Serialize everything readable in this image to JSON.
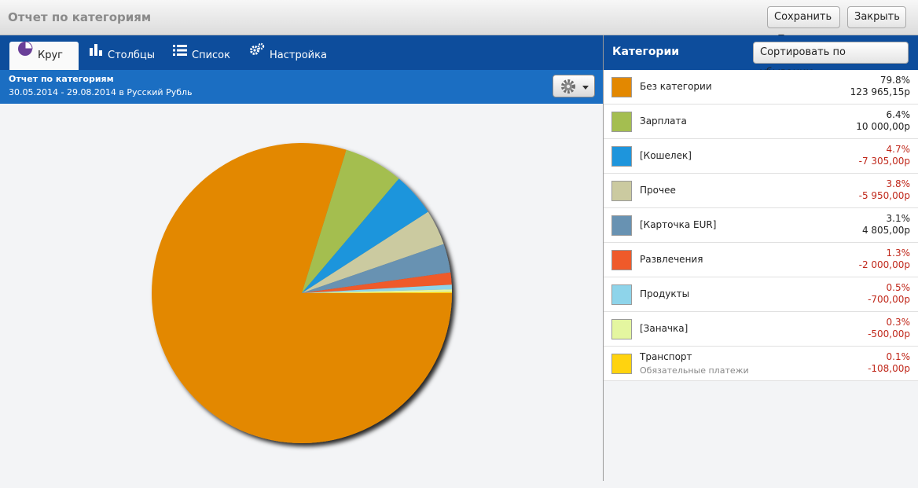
{
  "window": {
    "title": "Отчет по категориям"
  },
  "toolbar": {
    "save_label": "Сохранить",
    "close_label": "Закрыть"
  },
  "tabs": [
    {
      "label": "Круг",
      "icon": "pie-chart-icon",
      "active": true
    },
    {
      "label": "Столбцы",
      "icon": "bar-chart-icon",
      "active": false
    },
    {
      "label": "Список",
      "icon": "list-icon",
      "active": false
    },
    {
      "label": "Настройка",
      "icon": "gears-icon",
      "active": false
    }
  ],
  "report": {
    "title": "Отчет по категориям",
    "subtitle": "30.05.2014 - 29.08.2014 в Русский Рубль",
    "settings_icon": "gear-icon"
  },
  "categories_panel": {
    "title": "Категории",
    "sort_label": "Сортировать по убыванию",
    "items": [
      {
        "name": "Без категории",
        "sub": "",
        "percent": "79.8%",
        "amount": "123 965,15р",
        "value": 79.8,
        "color": "#e38800",
        "negative": false
      },
      {
        "name": "Зарплата",
        "sub": "",
        "percent": "6.4%",
        "amount": "10 000,00р",
        "value": 6.4,
        "color": "#a4be50",
        "negative": false
      },
      {
        "name": "[Кошелек]",
        "sub": "",
        "percent": "4.7%",
        "amount": "-7 305,00р",
        "value": 4.7,
        "color": "#1e95dc",
        "negative": true
      },
      {
        "name": "Прочее",
        "sub": "",
        "percent": "3.8%",
        "amount": "-5 950,00р",
        "value": 3.8,
        "color": "#cbcaa0",
        "negative": true
      },
      {
        "name": "[Карточка EUR]",
        "sub": "",
        "percent": "3.1%",
        "amount": "4 805,00р",
        "value": 3.1,
        "color": "#6892b2",
        "negative": false
      },
      {
        "name": "Развлечения",
        "sub": "",
        "percent": "1.3%",
        "amount": "-2 000,00р",
        "value": 1.3,
        "color": "#ef5a2a",
        "negative": true
      },
      {
        "name": "Продукты",
        "sub": "",
        "percent": "0.5%",
        "amount": "-700,00р",
        "value": 0.5,
        "color": "#8ed4ea",
        "negative": true
      },
      {
        "name": "[Заначка]",
        "sub": "",
        "percent": "0.3%",
        "amount": "-500,00р",
        "value": 0.3,
        "color": "#e4f6a0",
        "negative": true
      },
      {
        "name": "Транспорт",
        "sub": "Обязательные платежи",
        "percent": "0.1%",
        "amount": "-108,00р",
        "value": 0.1,
        "color": "#ffd30f",
        "negative": true
      }
    ]
  },
  "chart_data": {
    "type": "pie",
    "categories": [
      "Без категории",
      "Зарплата",
      "[Кошелек]",
      "Прочее",
      "[Карточка EUR]",
      "Развлечения",
      "Продукты",
      "[Заначка]",
      "Транспорт"
    ],
    "values": [
      79.8,
      6.4,
      4.7,
      3.8,
      3.1,
      1.3,
      0.5,
      0.3,
      0.1
    ],
    "colors": [
      "#e38800",
      "#a4be50",
      "#1e95dc",
      "#cbcaa0",
      "#6892b2",
      "#ef5a2a",
      "#8ed4ea",
      "#e4f6a0",
      "#ffd30f"
    ],
    "title": "",
    "legend": "none"
  }
}
